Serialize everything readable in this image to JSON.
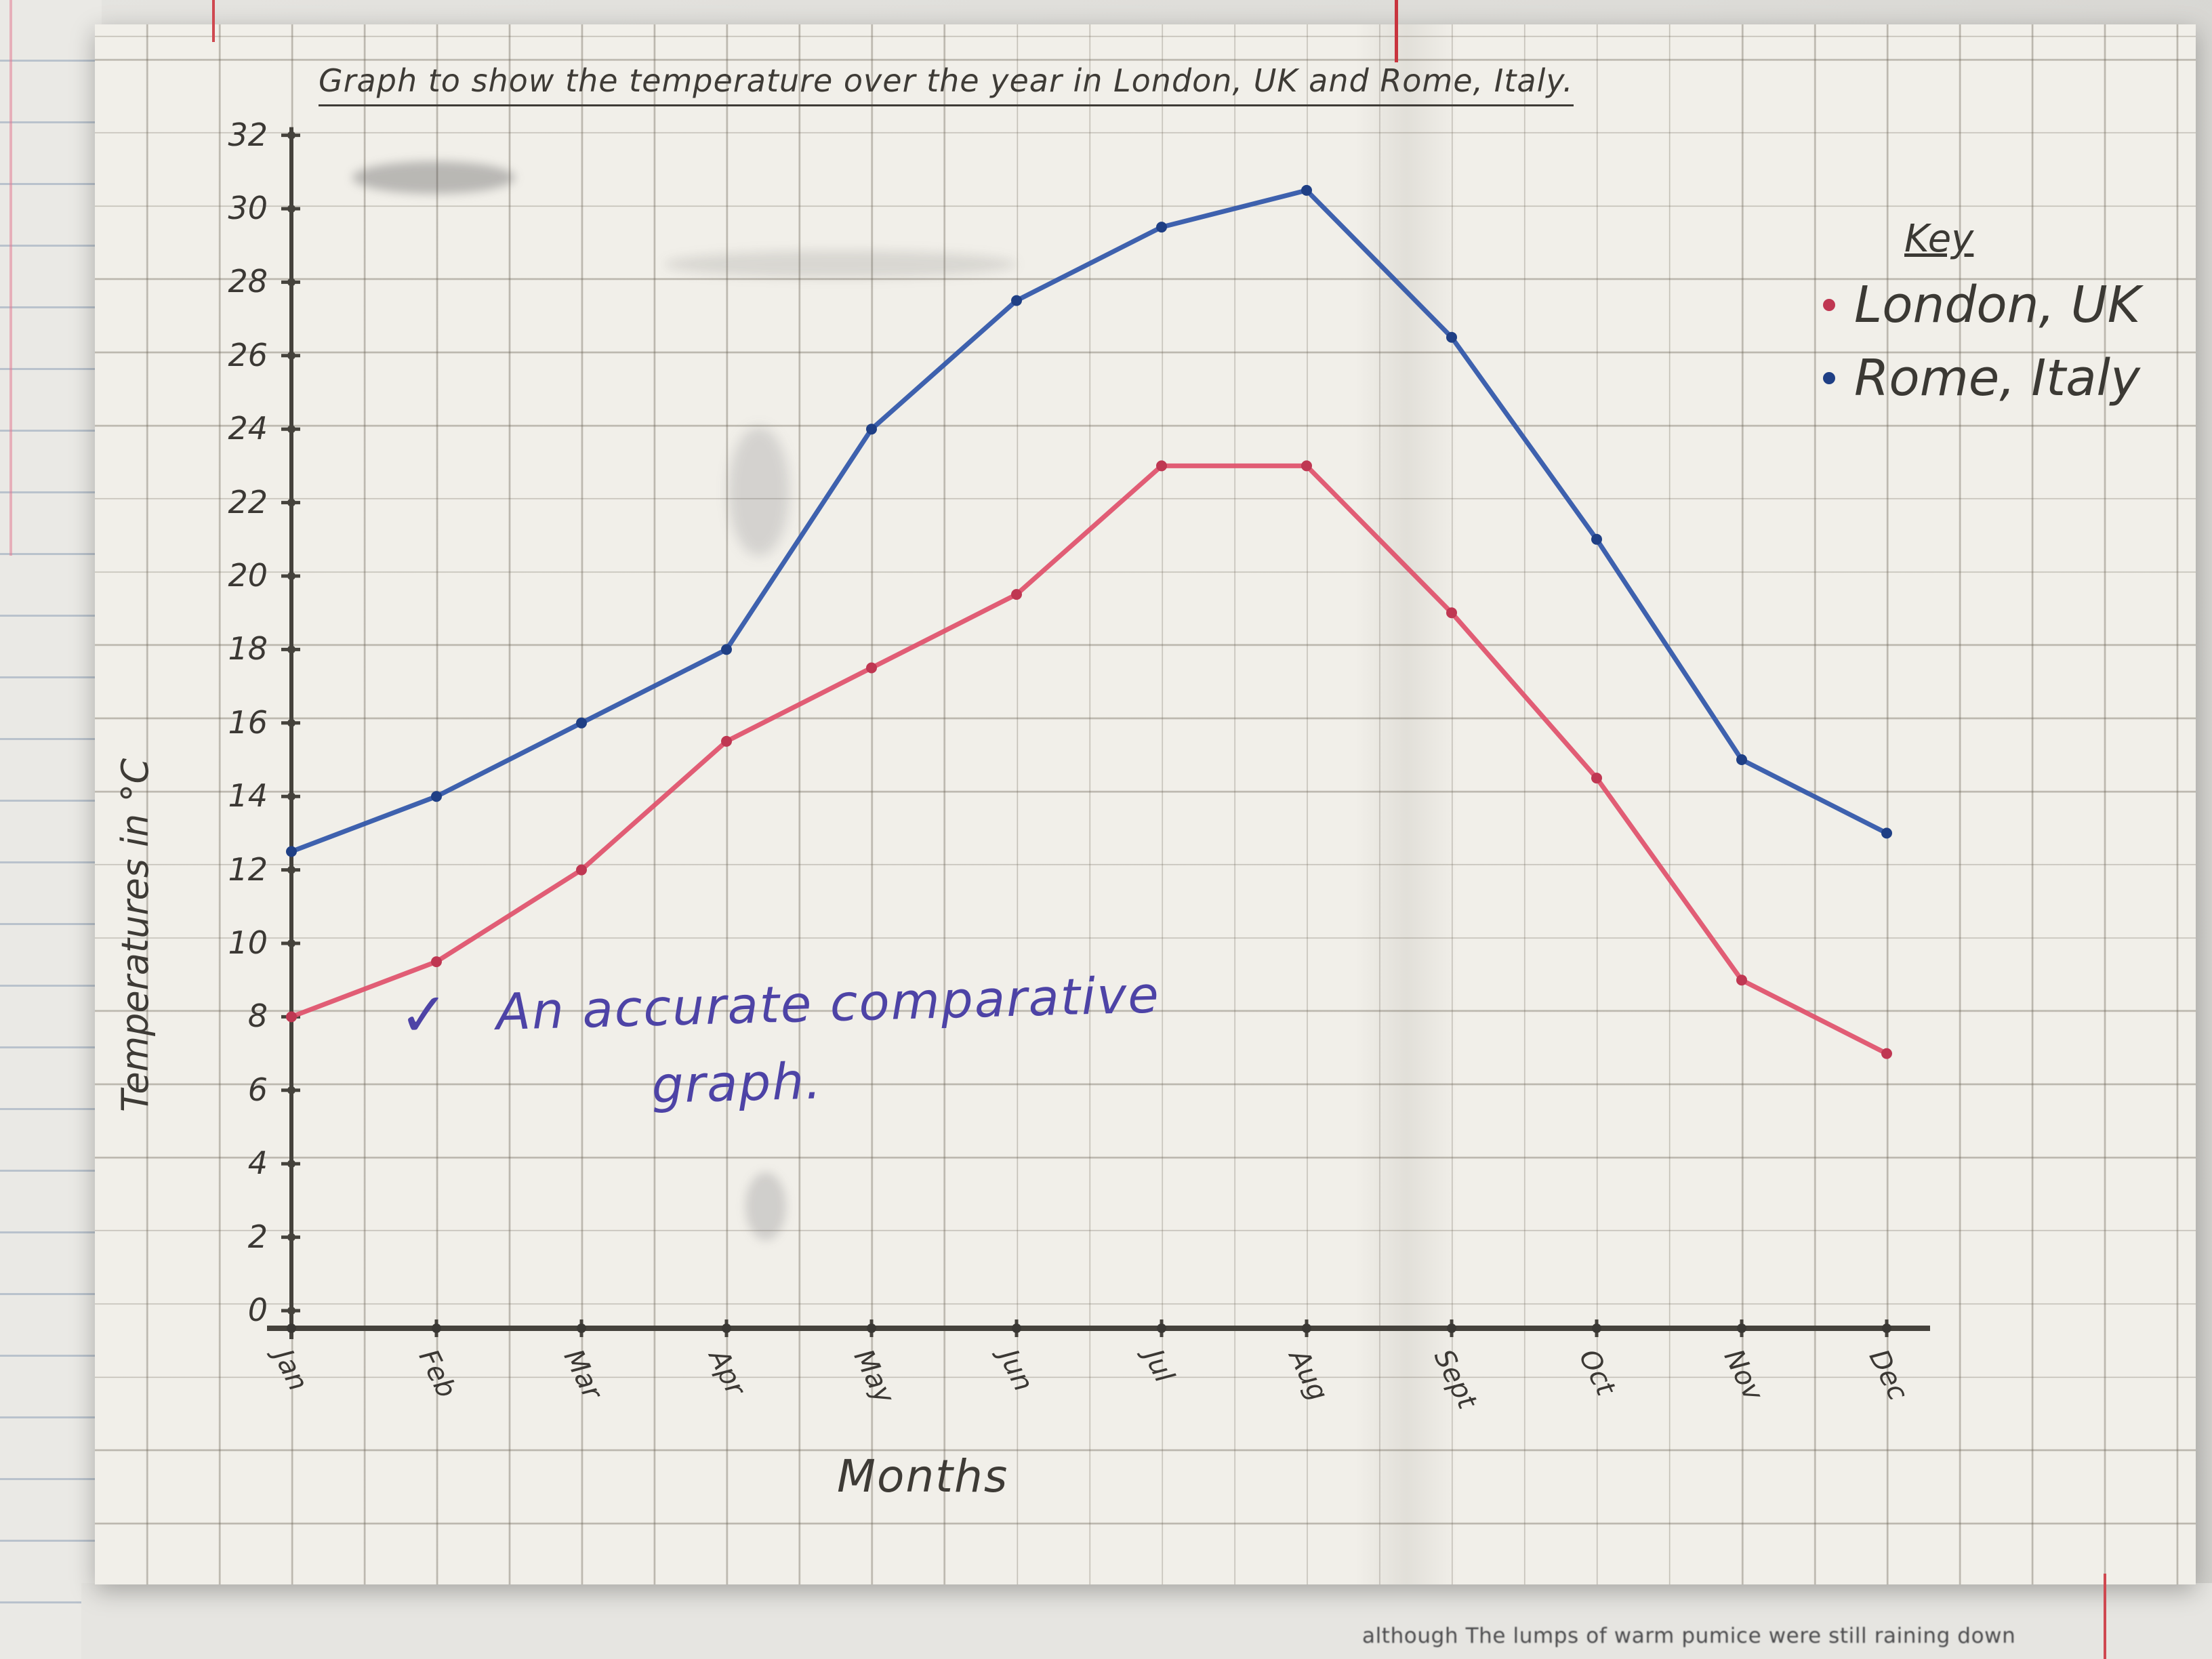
{
  "chart_data": {
    "type": "line",
    "title": "Graph to show the temperature over the year in London, UK and Rome, Italy.",
    "xlabel": "Months",
    "ylabel": "Temperatures in °C",
    "categories": [
      "Jan",
      "Feb",
      "Mar",
      "Apr",
      "May",
      "Jun",
      "Jul",
      "Aug",
      "Sept",
      "Oct",
      "Nov",
      "Dec"
    ],
    "ylim": [
      0,
      32
    ],
    "ytick_step": 2,
    "grid": true,
    "legend_title": "Key",
    "legend_position": "top-right",
    "series": [
      {
        "name": "London, UK",
        "color": "#e0506a",
        "dot_color": "#bf3752",
        "values": [
          8,
          9.5,
          12,
          15.5,
          17.5,
          19.5,
          23,
          23,
          19,
          14.5,
          9,
          7
        ]
      },
      {
        "name": "Rome, Italy",
        "color": "#2f55a8",
        "dot_color": "#1f3f85",
        "values": [
          12.5,
          14,
          16,
          18,
          24,
          27.5,
          29.5,
          30.5,
          26.5,
          21,
          15,
          13
        ]
      }
    ]
  },
  "annotation": {
    "check": "✓",
    "line1": "An accurate comparative",
    "line2": "graph."
  },
  "background": {
    "printed_text": "although The lumps of warm pumice were still raining down"
  },
  "colors": {
    "axis": "#45423c",
    "ink": "#3e3b36",
    "teacher_ink": "#4d43a6",
    "paper": "#f1efe9"
  }
}
